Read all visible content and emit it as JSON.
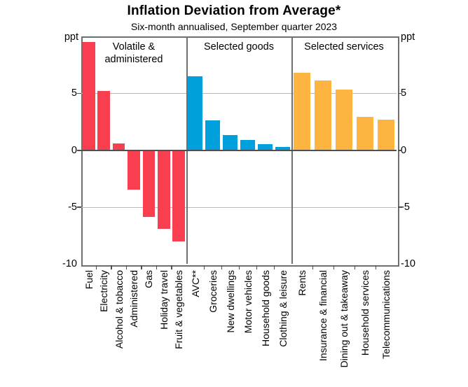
{
  "title": "Inflation Deviation from Average*",
  "subtitle": "Six-month annualised, September quarter 2023",
  "unit_left": "ppt",
  "unit_right": "ppt",
  "chart_data": {
    "type": "bar",
    "title": "Inflation Deviation from Average*",
    "subtitle": "Six-month annualised, September quarter 2023",
    "ylabel": "ppt",
    "ylim": [
      -10,
      10
    ],
    "yticks": [
      5,
      0,
      -5,
      -10
    ],
    "gridline_values": [
      5,
      -5
    ],
    "zero_line": 0,
    "legend_position": "none",
    "grid": "horizontal",
    "panels": [
      {
        "title": "Volatile & administered",
        "title_lines": [
          "Volatile &",
          "administered"
        ],
        "color": "#f93e4f",
        "categories": [
          "Fuel",
          "Electricity",
          "Alcohol & tobacco",
          "Administered",
          "Gas",
          "Holiday travel",
          "Fruit & vegetables"
        ],
        "values": [
          9.5,
          5.2,
          0.6,
          -3.5,
          -5.9,
          -6.9,
          -8.0
        ]
      },
      {
        "title": "Selected goods",
        "title_lines": [
          "Selected goods"
        ],
        "color": "#00a0dc",
        "categories": [
          "AVC**",
          "Groceries",
          "New dwellings",
          "Motor vehicles",
          "Household goods",
          "Clothing & leisure"
        ],
        "values": [
          6.5,
          2.6,
          1.3,
          0.9,
          0.5,
          0.25
        ]
      },
      {
        "title": "Selected services",
        "title_lines": [
          "Selected services"
        ],
        "color": "#fdb440",
        "categories": [
          "Rents",
          "Insurance & financial",
          "Dining out & takeaway",
          "Household services",
          "Telecommunications"
        ],
        "values": [
          6.8,
          6.1,
          5.3,
          2.9,
          2.7
        ]
      }
    ]
  },
  "colors": {
    "volatile_administered": "#f93e4f",
    "selected_goods": "#00a0dc",
    "selected_services": "#fdb440",
    "frame": "#6f6f6f",
    "gridline": "#b8b8b8",
    "zero_line": "#4f4f4f"
  }
}
